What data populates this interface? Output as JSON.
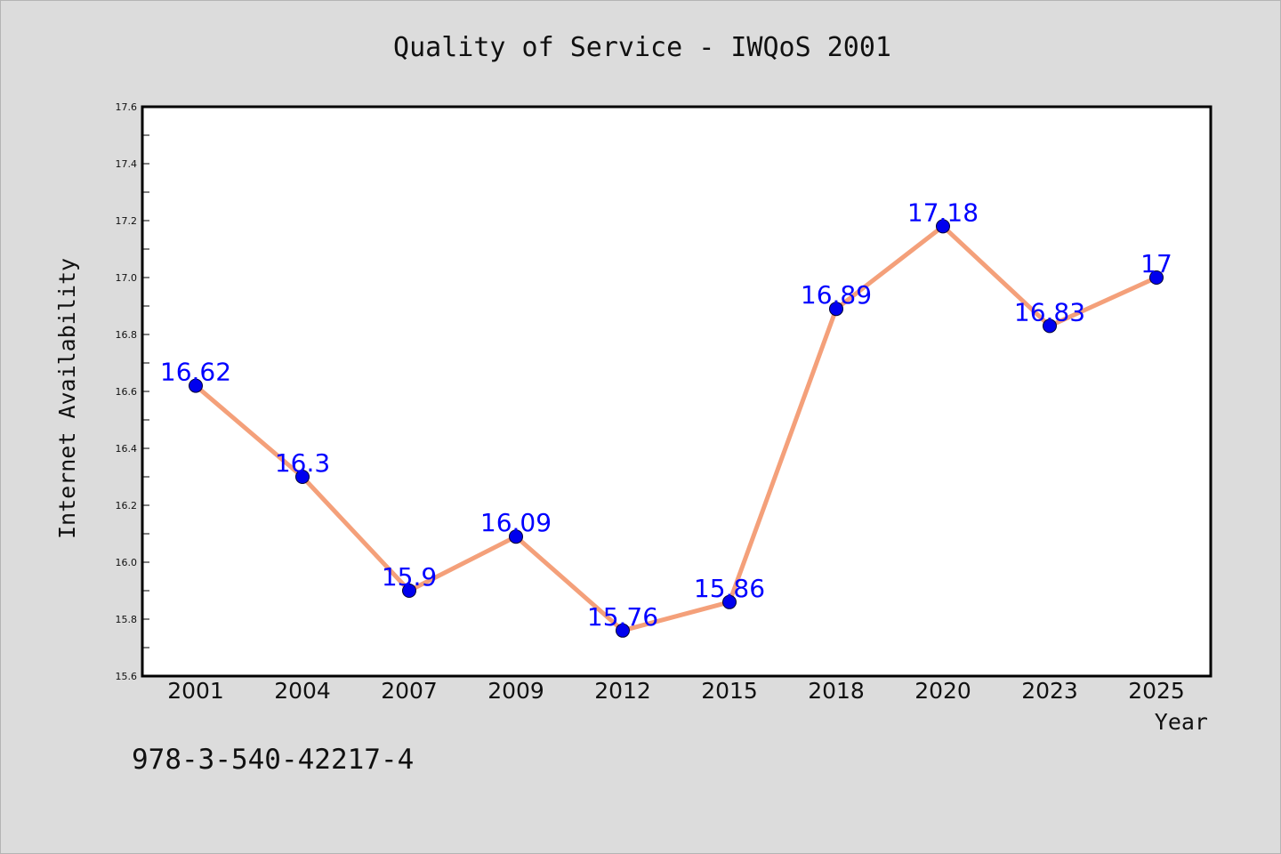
{
  "chart_data": {
    "type": "line",
    "title": "Quality of Service - IWQoS 2001",
    "xlabel": "Year",
    "ylabel": "Internet Availability",
    "categories": [
      "2001",
      "2004",
      "2007",
      "2009",
      "2012",
      "2015",
      "2018",
      "2020",
      "2023",
      "2025"
    ],
    "series": [
      {
        "values": [
          16.62,
          16.3,
          15.9,
          16.09,
          15.76,
          15.86,
          16.89,
          17.18,
          16.83,
          17
        ],
        "data_labels": [
          "16.62",
          "16.3",
          "15.9",
          "16.09",
          "15.76",
          "15.86",
          "16.89",
          "17.18",
          "16.83",
          "17"
        ]
      }
    ],
    "ylim": [
      15.6,
      17.6
    ],
    "yticks": [
      "15.6",
      "15.8",
      "16.0",
      "16.2",
      "16.4",
      "16.6",
      "16.8",
      "17.0",
      "17.2",
      "17.4",
      "17.6"
    ],
    "grid": false,
    "legend": "none",
    "colors": {
      "line": "#f4a07a",
      "marker": "#0000ee",
      "label": "#0000ff",
      "plot_bg": "#ffffff",
      "figure_bg": "#dcdcdc"
    }
  },
  "annotation": "978-3-540-42217-4"
}
